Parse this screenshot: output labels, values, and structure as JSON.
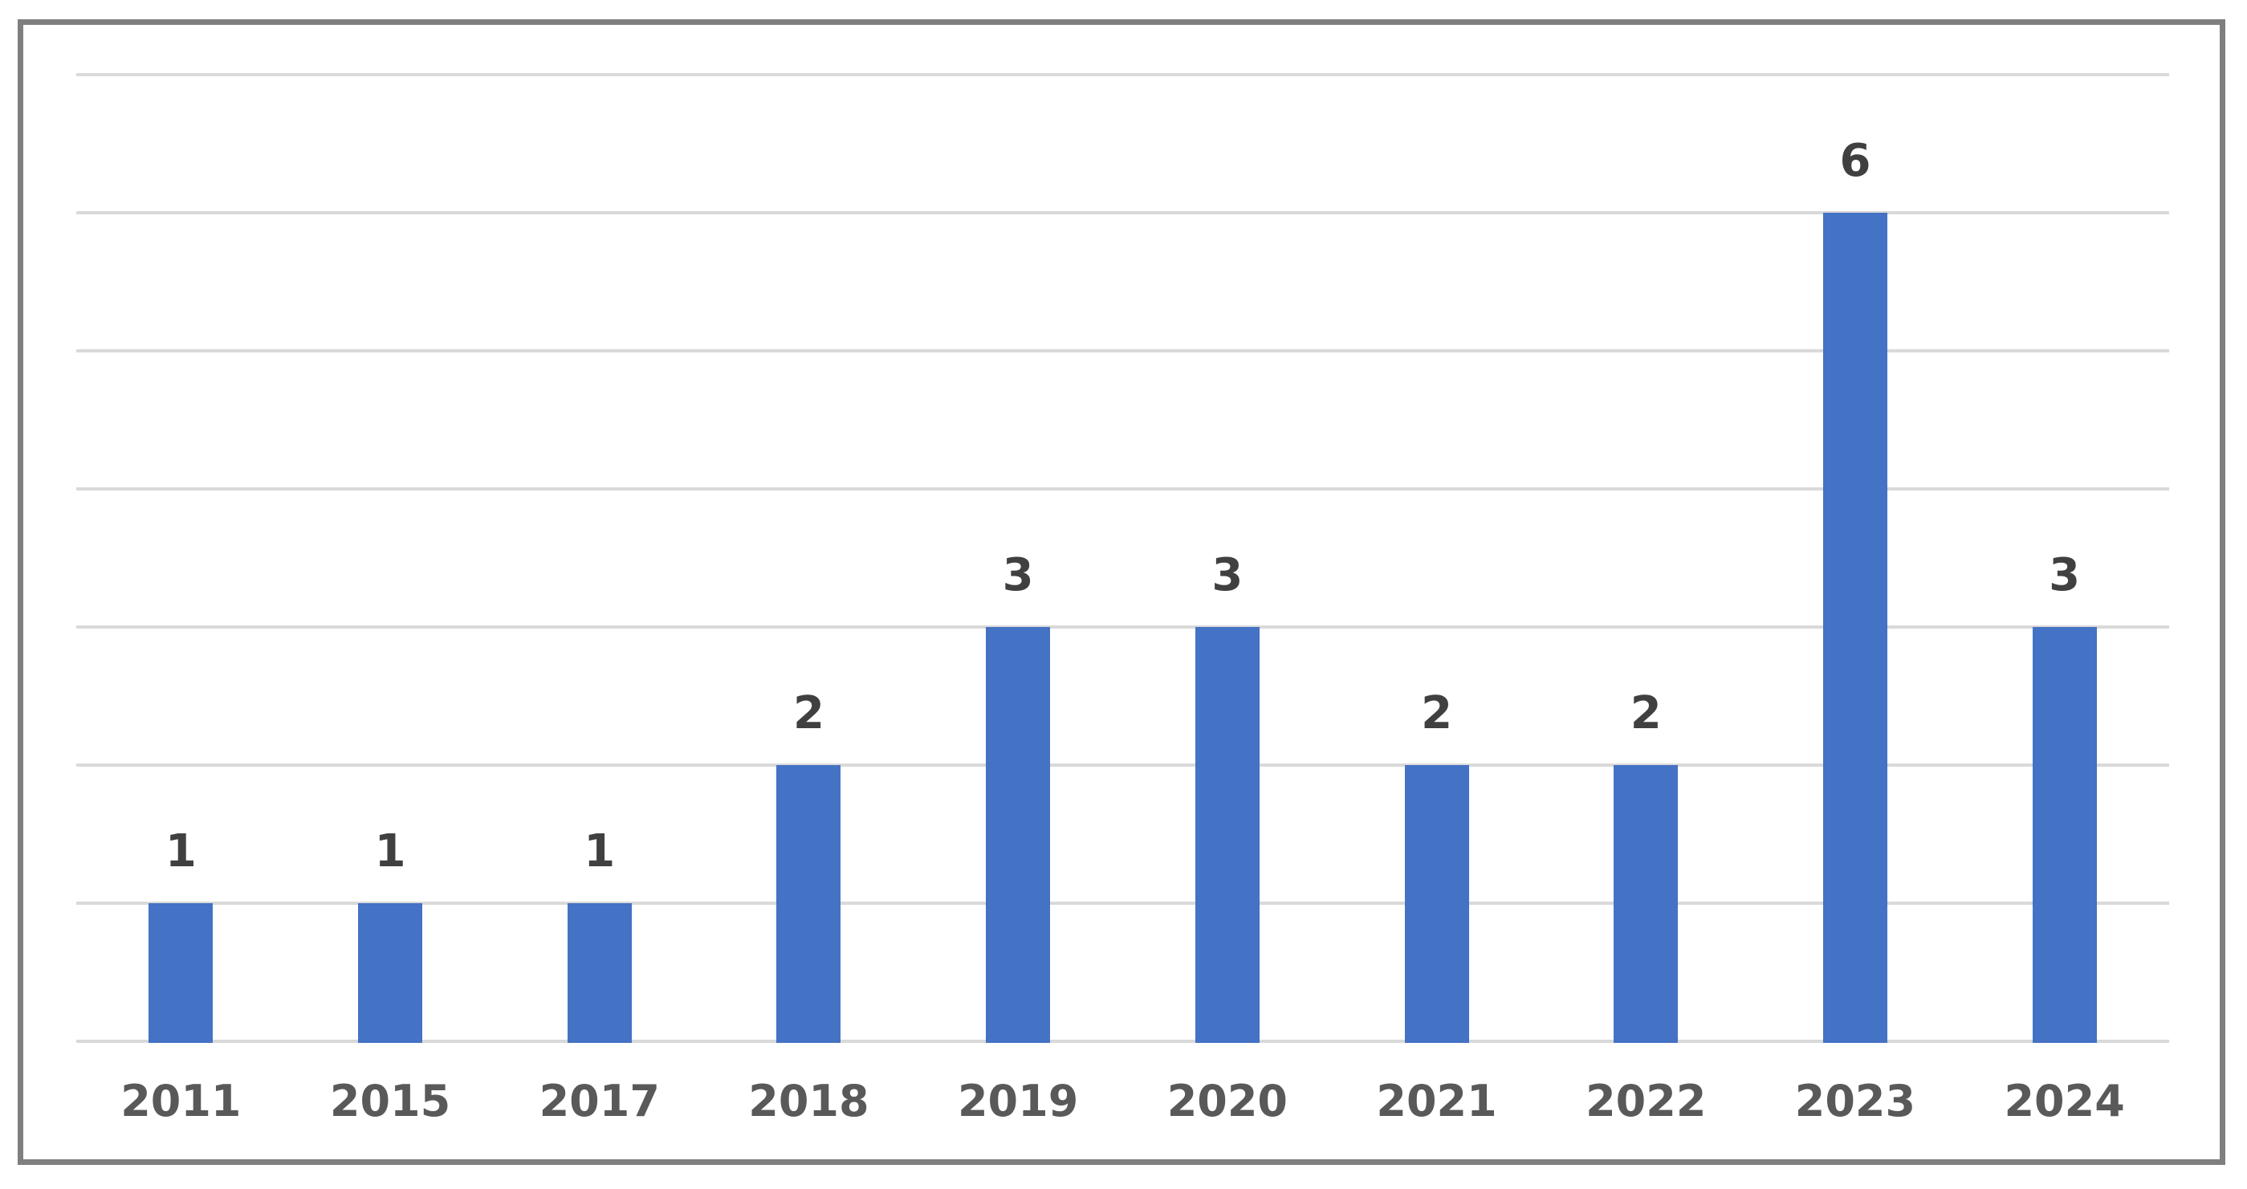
{
  "chart_data": {
    "type": "bar",
    "title": "",
    "categories": [
      "2011",
      "2015",
      "2017",
      "2018",
      "2019",
      "2020",
      "2021",
      "2022",
      "2023",
      "2024"
    ],
    "values": [
      1,
      1,
      1,
      2,
      3,
      3,
      2,
      2,
      6,
      3
    ],
    "data_labels": [
      "1",
      "1",
      "1",
      "2",
      "3",
      "3",
      "2",
      "2",
      "6",
      "3"
    ],
    "xlabel": "",
    "ylabel": "",
    "ylim": [
      0,
      7
    ],
    "gridline_step": 1,
    "grid": "horizontal-only",
    "y_axis_tick_labels": "none",
    "legend": "none"
  },
  "colors": {
    "bar_fill": "#4472C4",
    "gridline": "#D9D9D9",
    "data_label": "#404040",
    "axis_label": "#595959",
    "frame_border": "#7F7F7F",
    "background": "#FFFFFF"
  }
}
